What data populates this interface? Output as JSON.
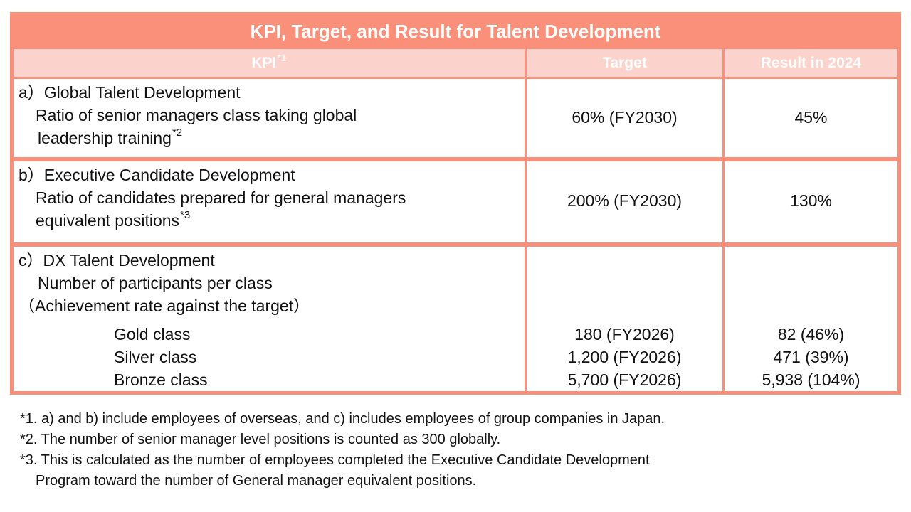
{
  "table": {
    "title": "KPI, Target, and Result for Talent Development",
    "headers": {
      "kpi": "KPI",
      "kpi_mark": "*1",
      "target": "Target",
      "result": "Result in 2024"
    },
    "rows": [
      {
        "heading": "a）Global Talent Development",
        "line1": "Ratio of senior managers class taking global",
        "line2": "leadership training",
        "note_mark": "*2",
        "target": "60% (FY2030)",
        "result": "45%"
      },
      {
        "heading": "b）Executive Candidate Development",
        "line1": "Ratio of candidates prepared for general managers",
        "line2": "equivalent positions",
        "note_mark": "*3",
        "target": "200% (FY2030)",
        "result": "130%"
      },
      {
        "heading": "c）DX Talent Development",
        "line1": "Number of participants per class",
        "line2": "（Achievement rate against the target）",
        "classes": [
          {
            "name": "Gold class",
            "target": "180 (FY2026)",
            "result": "82 (46%)"
          },
          {
            "name": "Silver class",
            "target": "1,200 (FY2026)",
            "result": "471 (39%)"
          },
          {
            "name": "Bronze class",
            "target": "5,700 (FY2026)",
            "result": "5,938 (104%)"
          }
        ]
      }
    ]
  },
  "footnotes": {
    "n1": "*1. a) and b) include employees of overseas, and c) includes employees of group companies in Japan.",
    "n2": "*2. The number of senior manager level positions is counted as 300 globally.",
    "n3_line1": "*3. This is calculated as the number of employees completed the Executive Candidate Development",
    "n3_line2": "Program toward the number of General manager equivalent positions."
  },
  "colors": {
    "frame": "#fa8f7a",
    "header_row": "#fcd3cc",
    "title_text": "#ffffff"
  }
}
